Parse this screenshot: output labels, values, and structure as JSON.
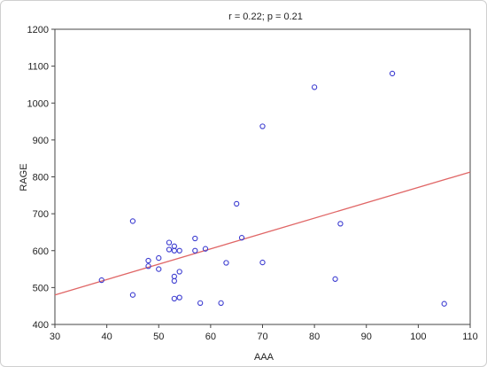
{
  "chart_data": {
    "type": "scatter",
    "title": "r = 0.22; p = 0.21",
    "xlabel": "AAA",
    "ylabel": "RAGE",
    "xlim": [
      30,
      110
    ],
    "ylim": [
      400,
      1200
    ],
    "xticks": [
      30,
      40,
      50,
      60,
      70,
      80,
      90,
      100,
      110
    ],
    "yticks": [
      400,
      500,
      600,
      700,
      800,
      900,
      1000,
      1100,
      1200
    ],
    "grid": false,
    "legend": "none",
    "colors": {
      "points": "#3b3bd0",
      "fit_line": "#e06666",
      "axis": "#444444"
    },
    "series": [
      {
        "points": [
          [
            39,
            520
          ],
          [
            45,
            680
          ],
          [
            45,
            480
          ],
          [
            48,
            573
          ],
          [
            48,
            558
          ],
          [
            50,
            580
          ],
          [
            50,
            550
          ],
          [
            52,
            622
          ],
          [
            52,
            603
          ],
          [
            53,
            612
          ],
          [
            53,
            600
          ],
          [
            54,
            600
          ],
          [
            54,
            543
          ],
          [
            53,
            530
          ],
          [
            53,
            518
          ],
          [
            53,
            470
          ],
          [
            54,
            473
          ],
          [
            57,
            633
          ],
          [
            57,
            600
          ],
          [
            58,
            458
          ],
          [
            59,
            605
          ],
          [
            62,
            458
          ],
          [
            63,
            567
          ],
          [
            65,
            727
          ],
          [
            66,
            635
          ],
          [
            70,
            937
          ],
          [
            70,
            568
          ],
          [
            80,
            1043
          ],
          [
            84,
            523
          ],
          [
            85,
            673
          ],
          [
            95,
            1080
          ],
          [
            105,
            456
          ]
        ]
      }
    ],
    "fit_line": {
      "x": [
        30,
        110
      ],
      "y": [
        480,
        813
      ]
    }
  }
}
